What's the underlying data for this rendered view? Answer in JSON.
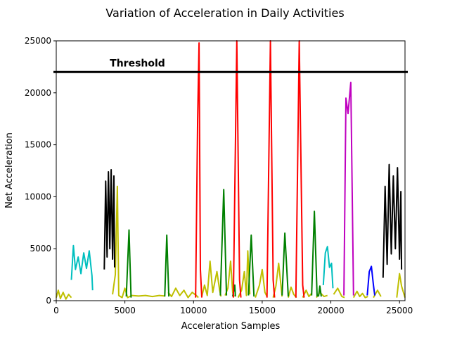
{
  "chart_data": {
    "type": "line",
    "title": "Variation of Acceleration in Daily Activities",
    "xlabel": "Acceleration Samples",
    "ylabel": "Net Acceleration",
    "xlim": [
      0,
      25400
    ],
    "ylim": [
      0,
      25000
    ],
    "xticks": [
      0,
      5000,
      10000,
      15000,
      20000,
      25000
    ],
    "yticks": [
      0,
      5000,
      10000,
      15000,
      20000,
      25000
    ],
    "grid": false,
    "legend": "none",
    "threshold": {
      "value": 22000,
      "label": "Threshold",
      "color": "#000000"
    },
    "series": [
      {
        "color": "#bfbf00",
        "segments": [
          [
            [
              0,
              300
            ],
            [
              150,
              1000
            ],
            [
              300,
              200
            ],
            [
              500,
              800
            ],
            [
              700,
              150
            ],
            [
              900,
              600
            ],
            [
              1100,
              300
            ]
          ],
          [
            [
              4100,
              600
            ],
            [
              4300,
              2500
            ],
            [
              4450,
              11000
            ],
            [
              4550,
              500
            ],
            [
              4800,
              300
            ],
            [
              5000,
              1200
            ],
            [
              5200,
              300
            ],
            [
              5500,
              500
            ],
            [
              6000,
              450
            ],
            [
              6500,
              500
            ],
            [
              7000,
              400
            ],
            [
              7500,
              500
            ],
            [
              7900,
              450
            ]
          ],
          [
            [
              8150,
              800
            ],
            [
              8400,
              400
            ],
            [
              8700,
              1200
            ],
            [
              9000,
              500
            ],
            [
              9300,
              1000
            ],
            [
              9600,
              300
            ],
            [
              9900,
              800
            ],
            [
              10200,
              500
            ],
            [
              10350,
              300
            ]
          ],
          [
            [
              10600,
              400
            ],
            [
              10800,
              1500
            ],
            [
              11000,
              500
            ],
            [
              11200,
              3800
            ],
            [
              11400,
              800
            ],
            [
              11700,
              2800
            ],
            [
              11900,
              1000
            ],
            [
              12000,
              400
            ]
          ],
          [
            [
              12300,
              500
            ],
            [
              12500,
              1200
            ],
            [
              12700,
              3800
            ],
            [
              12850,
              800
            ],
            [
              12950,
              400
            ]
          ],
          [
            [
              13250,
              300
            ],
            [
              13500,
              1000
            ],
            [
              13700,
              2800
            ],
            [
              13850,
              500
            ],
            [
              13950,
              4800
            ],
            [
              14100,
              600
            ]
          ],
          [
            [
              14500,
              300
            ],
            [
              14800,
              1500
            ],
            [
              15000,
              3000
            ],
            [
              15200,
              800
            ],
            [
              15350,
              400
            ]
          ],
          [
            [
              15800,
              300
            ],
            [
              16000,
              1400
            ],
            [
              16200,
              3600
            ],
            [
              16400,
              1000
            ],
            [
              16450,
              400
            ]
          ],
          [
            [
              16900,
              300
            ],
            [
              17100,
              1300
            ],
            [
              17300,
              600
            ],
            [
              17500,
              300
            ]
          ],
          [
            [
              17950,
              300
            ],
            [
              18200,
              1000
            ],
            [
              18400,
              400
            ],
            [
              18600,
              700
            ]
          ],
          [
            [
              18950,
              300
            ],
            [
              19200,
              800
            ],
            [
              19500,
              400
            ],
            [
              19750,
              500
            ]
          ],
          [
            [
              20200,
              600
            ],
            [
              20500,
              1200
            ],
            [
              20800,
              400
            ],
            [
              21000,
              300
            ]
          ],
          [
            [
              21650,
              300
            ],
            [
              21900,
              900
            ],
            [
              22100,
              400
            ],
            [
              22300,
              700
            ],
            [
              22500,
              300
            ],
            [
              22700,
              400
            ]
          ],
          [
            [
              23100,
              300
            ],
            [
              23400,
              1000
            ],
            [
              23650,
              400
            ]
          ],
          [
            [
              24800,
              300
            ],
            [
              25000,
              2600
            ],
            [
              25150,
              1400
            ],
            [
              25400,
              300
            ]
          ]
        ]
      },
      {
        "color": "#00bfbf",
        "segments": [
          [
            [
              1100,
              2000
            ],
            [
              1250,
              5300
            ],
            [
              1400,
              3000
            ],
            [
              1600,
              4200
            ],
            [
              1800,
              2600
            ],
            [
              2000,
              4600
            ],
            [
              2200,
              3100
            ],
            [
              2400,
              4800
            ],
            [
              2600,
              2400
            ],
            [
              2650,
              1000
            ]
          ],
          [
            [
              19450,
              1500
            ],
            [
              19600,
              4600
            ],
            [
              19750,
              5200
            ],
            [
              19900,
              3200
            ],
            [
              20050,
              3600
            ],
            [
              20150,
              1200
            ]
          ]
        ]
      },
      {
        "color": "#000000",
        "segments": [
          [
            [
              3500,
              3000
            ],
            [
              3600,
              11500
            ],
            [
              3700,
              4200
            ],
            [
              3800,
              12400
            ],
            [
              3900,
              5000
            ],
            [
              4000,
              12600
            ],
            [
              4100,
              4000
            ],
            [
              4200,
              12000
            ],
            [
              4250,
              3200
            ]
          ],
          [
            [
              23800,
              2200
            ],
            [
              23950,
              11000
            ],
            [
              24100,
              3500
            ],
            [
              24250,
              13100
            ],
            [
              24400,
              4500
            ],
            [
              24550,
              12000
            ],
            [
              24700,
              5000
            ],
            [
              24850,
              12800
            ],
            [
              25000,
              4000
            ],
            [
              25100,
              10500
            ],
            [
              25150,
              3000
            ]
          ]
        ]
      },
      {
        "color": "#008000",
        "segments": [
          [
            [
              5100,
              400
            ],
            [
              5300,
              6800
            ],
            [
              5450,
              300
            ]
          ],
          [
            [
              7900,
              400
            ],
            [
              8050,
              6300
            ],
            [
              8200,
              400
            ]
          ],
          [
            [
              11950,
              500
            ],
            [
              12200,
              10700
            ],
            [
              12400,
              500
            ]
          ],
          [
            [
              12850,
              400
            ],
            [
              13000,
              1500
            ],
            [
              13050,
              400
            ]
          ],
          [
            [
              14000,
              500
            ],
            [
              14200,
              6300
            ],
            [
              14400,
              400
            ]
          ],
          [
            [
              16450,
              500
            ],
            [
              16650,
              6500
            ],
            [
              16900,
              400
            ]
          ],
          [
            [
              18600,
              500
            ],
            [
              18800,
              8600
            ],
            [
              19000,
              400
            ]
          ],
          [
            [
              19100,
              400
            ],
            [
              19200,
              1400
            ],
            [
              19300,
              400
            ]
          ]
        ]
      },
      {
        "color": "#ff0000",
        "segments": [
          [
            [
              10150,
              300
            ],
            [
              10300,
              17500
            ],
            [
              10400,
              24800
            ],
            [
              10500,
              3000
            ],
            [
              10600,
              300
            ]
          ],
          [
            [
              12900,
              300
            ],
            [
              13150,
              25000
            ],
            [
              13350,
              2000
            ],
            [
              13450,
              300
            ]
          ],
          [
            [
              15350,
              300
            ],
            [
              15600,
              25000
            ],
            [
              15800,
              2000
            ],
            [
              15900,
              300
            ]
          ],
          [
            [
              17450,
              300
            ],
            [
              17700,
              25000
            ],
            [
              17950,
              1500
            ],
            [
              18050,
              300
            ]
          ]
        ]
      },
      {
        "color": "#bf00bf",
        "segments": [
          [
            [
              20950,
              500
            ],
            [
              21100,
              19500
            ],
            [
              21250,
              18000
            ],
            [
              21450,
              21000
            ],
            [
              21650,
              500
            ]
          ]
        ]
      },
      {
        "color": "#0000ff",
        "segments": [
          [
            [
              22650,
              500
            ],
            [
              22800,
              2800
            ],
            [
              22950,
              3300
            ],
            [
              23100,
              1500
            ],
            [
              23200,
              500
            ]
          ]
        ]
      }
    ]
  }
}
